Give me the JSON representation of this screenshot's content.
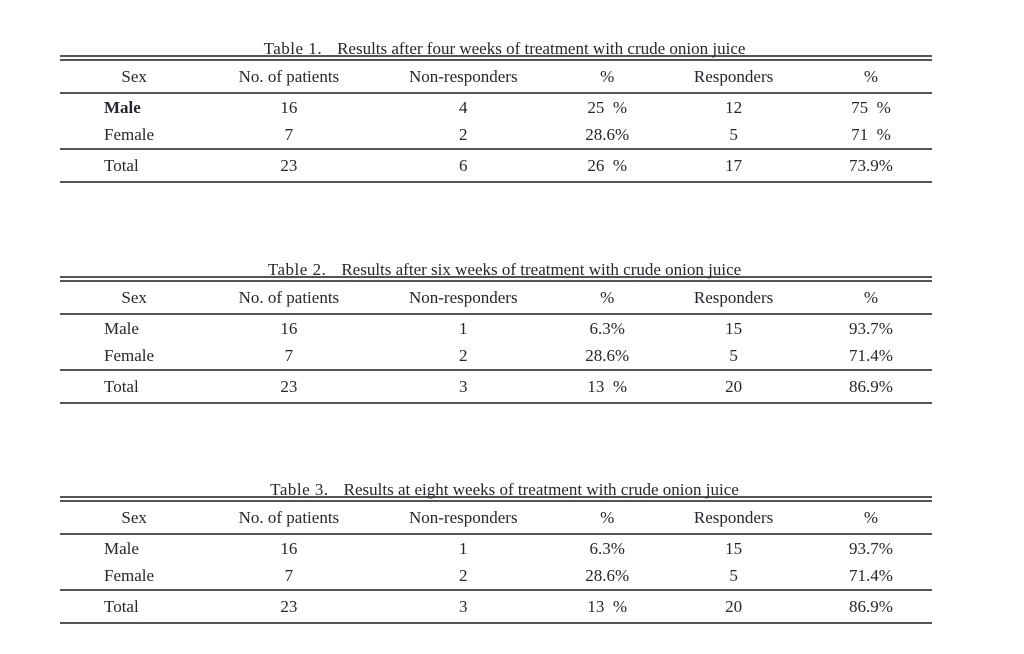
{
  "document": {
    "background": "#ffffff",
    "text_color": "#26262f",
    "rule_color": "#54545b"
  },
  "tables": [
    {
      "label": "Table 1.",
      "caption": "Results after four weeks of treatment with crude onion juice",
      "headers": [
        "Sex",
        "No. of patients",
        "Non-responders",
        "%",
        "Responders",
        "%"
      ],
      "rows": [
        {
          "cells": [
            "Male",
            "16",
            "4",
            "25  %",
            "12",
            "75  %"
          ]
        },
        {
          "cells": [
            "Female",
            "7",
            "2",
            "28.6%",
            "5",
            "71  %"
          ]
        }
      ],
      "total": {
        "cells": [
          "Total",
          "23",
          "6",
          "26  %",
          "17",
          "73.9%"
        ]
      }
    },
    {
      "label": "Table 2.",
      "caption": "Results after six weeks of treatment with crude onion juice",
      "headers": [
        "Sex",
        "No. of patients",
        "Non-responders",
        "%",
        "Responders",
        "%"
      ],
      "rows": [
        {
          "cells": [
            "Male",
            "16",
            "1",
            "6.3%",
            "15",
            "93.7%"
          ]
        },
        {
          "cells": [
            "Female",
            "7",
            "2",
            "28.6%",
            "5",
            "71.4%"
          ]
        }
      ],
      "total": {
        "cells": [
          "Total",
          "23",
          "3",
          "13  %",
          "20",
          "86.9%"
        ]
      }
    },
    {
      "label": "Table 3.",
      "caption": "Results at eight weeks of treatment with crude onion juice",
      "headers": [
        "Sex",
        "No. of patients",
        "Non-responders",
        "%",
        "Responders",
        "%"
      ],
      "rows": [
        {
          "cells": [
            "Male",
            "16",
            "1",
            "6.3%",
            "15",
            "93.7%"
          ]
        },
        {
          "cells": [
            "Female",
            "7",
            "2",
            "28.6%",
            "5",
            "71.4%"
          ]
        }
      ],
      "total": {
        "cells": [
          "Total",
          "23",
          "3",
          "13  %",
          "20",
          "86.9%"
        ]
      }
    }
  ]
}
